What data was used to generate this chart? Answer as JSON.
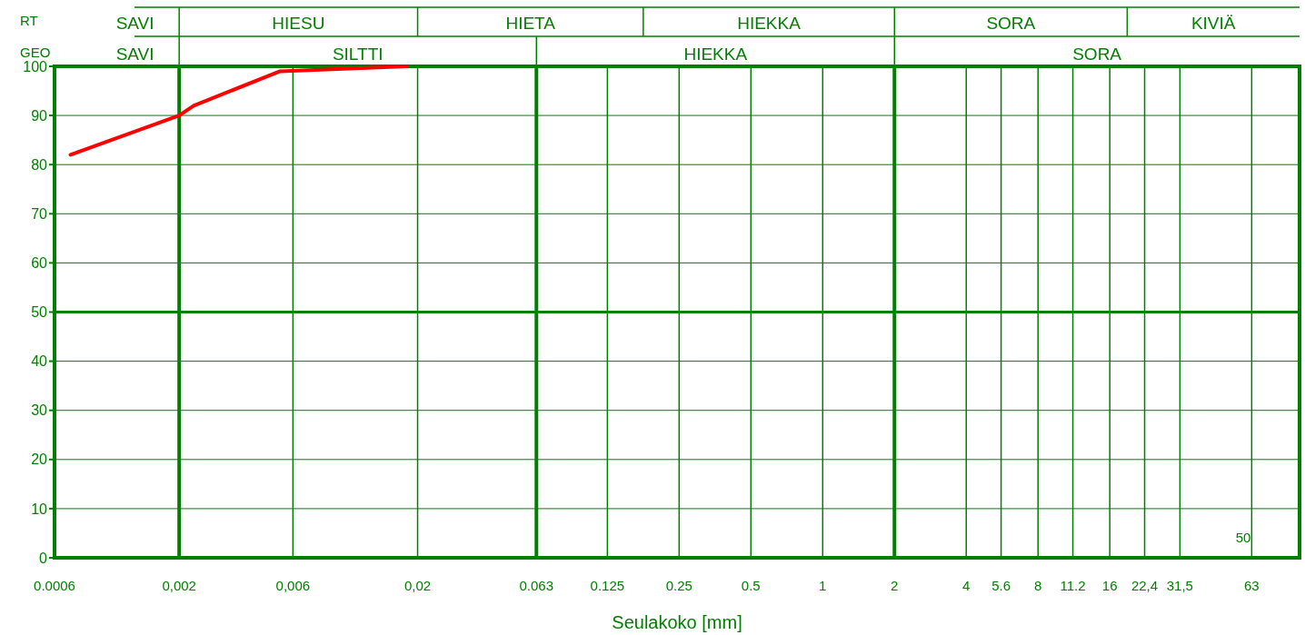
{
  "chart_data": {
    "type": "line",
    "xlabel": "Seulakoko [mm]",
    "log": "x",
    "x": [
      0.0007,
      0.002,
      0.0023,
      0.0053,
      0.018
    ],
    "series": [
      {
        "color": "#ff0000",
        "values": [
          82,
          90,
          92,
          99,
          100
        ]
      }
    ],
    "xlim": [
      0.0006,
      100
    ],
    "ylim": [
      0,
      100
    ],
    "ref_lines": [
      {
        "axis": "y",
        "value": 50,
        "color": "#008000"
      }
    ],
    "xticks": [
      {
        "value": 0.0006,
        "label": "0.0006"
      },
      {
        "value": 0.002,
        "label": "0,002"
      },
      {
        "value": 0.006,
        "label": "0,006"
      },
      {
        "value": 0.02,
        "label": "0,02"
      },
      {
        "value": 0.063,
        "label": "0.063"
      },
      0.125,
      0.25,
      0.5,
      1,
      2,
      4,
      5.6,
      8,
      11.2,
      16,
      {
        "value": 22.4,
        "label": "22,4"
      },
      {
        "value": 31.5,
        "label": "31,5"
      },
      63
    ],
    "yticks": [
      0,
      10,
      20,
      30,
      40,
      50,
      60,
      70,
      80,
      90,
      100
    ],
    "grid": true,
    "line_style": "solid",
    "marker": "none",
    "annotations": [
      "RT",
      "SAVI",
      "HIESU",
      "HIETA",
      "HIEKKA",
      "SORA",
      "KIVIÄ",
      "GEO",
      "SAVI",
      "SILTTI",
      "HIEKKA",
      "SORA",
      "50"
    ]
  }
}
